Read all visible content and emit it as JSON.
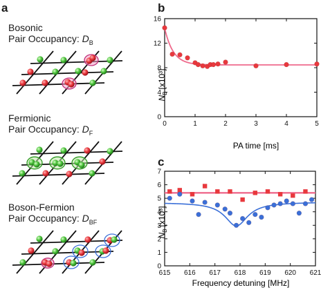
{
  "panel_labels": {
    "a": "a",
    "b": "b",
    "c": "c"
  },
  "panel_a": {
    "bosonic": {
      "line1": "Bosonic",
      "line2": "Pair Occupancy: ",
      "sym": "D",
      "sub": "B"
    },
    "fermionic": {
      "line1": "Fermionic",
      "line2": "Pair Occupancy: ",
      "sym": "D",
      "sub": "F"
    },
    "bf": {
      "line1": "Boson-Fermion",
      "line2": "Pair Occupancy: ",
      "sym": "D",
      "sub": "BF"
    }
  },
  "colors": {
    "boson": "#e8383d",
    "fermion": "#4cc23b",
    "blue": "#3a6fd8",
    "pink": "#ef6a8c",
    "pinkfill": "#f4a0c8",
    "greenfill": "#bfe8a8"
  },
  "chart_data": [
    {
      "type": "scatter",
      "panel": "b",
      "ylabel_sym": "N",
      "ylabel_sub": "B",
      "ylabel_unit": "[x10³]",
      "xlabel": "PA time [ms]",
      "xlim": [
        0,
        5
      ],
      "ylim": [
        0,
        16
      ],
      "xticks": [
        0,
        1,
        2,
        3,
        4,
        5
      ],
      "yticks": [
        0,
        4,
        8,
        12,
        16
      ],
      "series": [
        {
          "marker": "circle",
          "color": "#e8383d",
          "x": [
            0,
            0.25,
            0.5,
            0.75,
            1.0,
            1.1,
            1.25,
            1.4,
            1.5,
            1.6,
            1.75,
            2.0,
            3.0,
            4.0,
            5.0
          ],
          "y": [
            14.5,
            10.2,
            10.1,
            9.6,
            8.8,
            8.5,
            8.3,
            8.2,
            8.5,
            8.5,
            8.6,
            8.9,
            8.3,
            8.5,
            8.6
          ]
        }
      ],
      "fit": {
        "color": "#ef6a8c",
        "kind": "exp",
        "a": 8.45,
        "b": 6.0,
        "tau": 0.28
      }
    },
    {
      "type": "scatter",
      "panel": "c",
      "ylabel_sym": "N",
      "ylabel_sub": "B",
      "ylabel_unit": "[x10³]",
      "xlabel": "Frequency detuning [MHz]",
      "xlim": [
        615,
        621
      ],
      "ylim": [
        0,
        7
      ],
      "xticks": [
        615,
        616,
        617,
        618,
        619,
        620,
        621
      ],
      "yticks": [
        0,
        1,
        2,
        3,
        4,
        5,
        6,
        7
      ],
      "series": [
        {
          "marker": "square",
          "color": "#e8383d",
          "x": [
            615.2,
            615.6,
            616.1,
            616.6,
            617.1,
            617.6,
            618.1,
            618.6,
            619.1,
            619.6,
            620.1,
            620.6
          ],
          "y": [
            5.5,
            5.6,
            5.3,
            5.9,
            5.5,
            5.5,
            4.9,
            5.4,
            5.5,
            5.3,
            5.2,
            5.5
          ]
        },
        {
          "marker": "circle",
          "color": "#3a6fd8",
          "x": [
            615.2,
            615.6,
            616.1,
            616.35,
            616.6,
            617.1,
            617.4,
            617.6,
            617.85,
            618.1,
            618.35,
            618.6,
            618.85,
            619.1,
            619.35,
            619.6,
            619.85,
            620.1,
            620.35,
            620.6,
            620.85
          ],
          "y": [
            5.0,
            5.3,
            4.8,
            3.8,
            4.7,
            4.5,
            4.2,
            3.9,
            3.0,
            3.5,
            3.2,
            3.8,
            3.6,
            4.3,
            4.5,
            4.6,
            4.8,
            4.6,
            3.9,
            4.6,
            4.9
          ]
        }
      ],
      "fits": [
        {
          "color": "#ef6a8c",
          "kind": "const",
          "value": 5.4
        },
        {
          "color": "#3a6fd8",
          "kind": "lorentz_dip",
          "base": 4.7,
          "depth": 1.75,
          "center": 617.85,
          "width": 1.1,
          "slope": 0.05
        }
      ]
    }
  ]
}
